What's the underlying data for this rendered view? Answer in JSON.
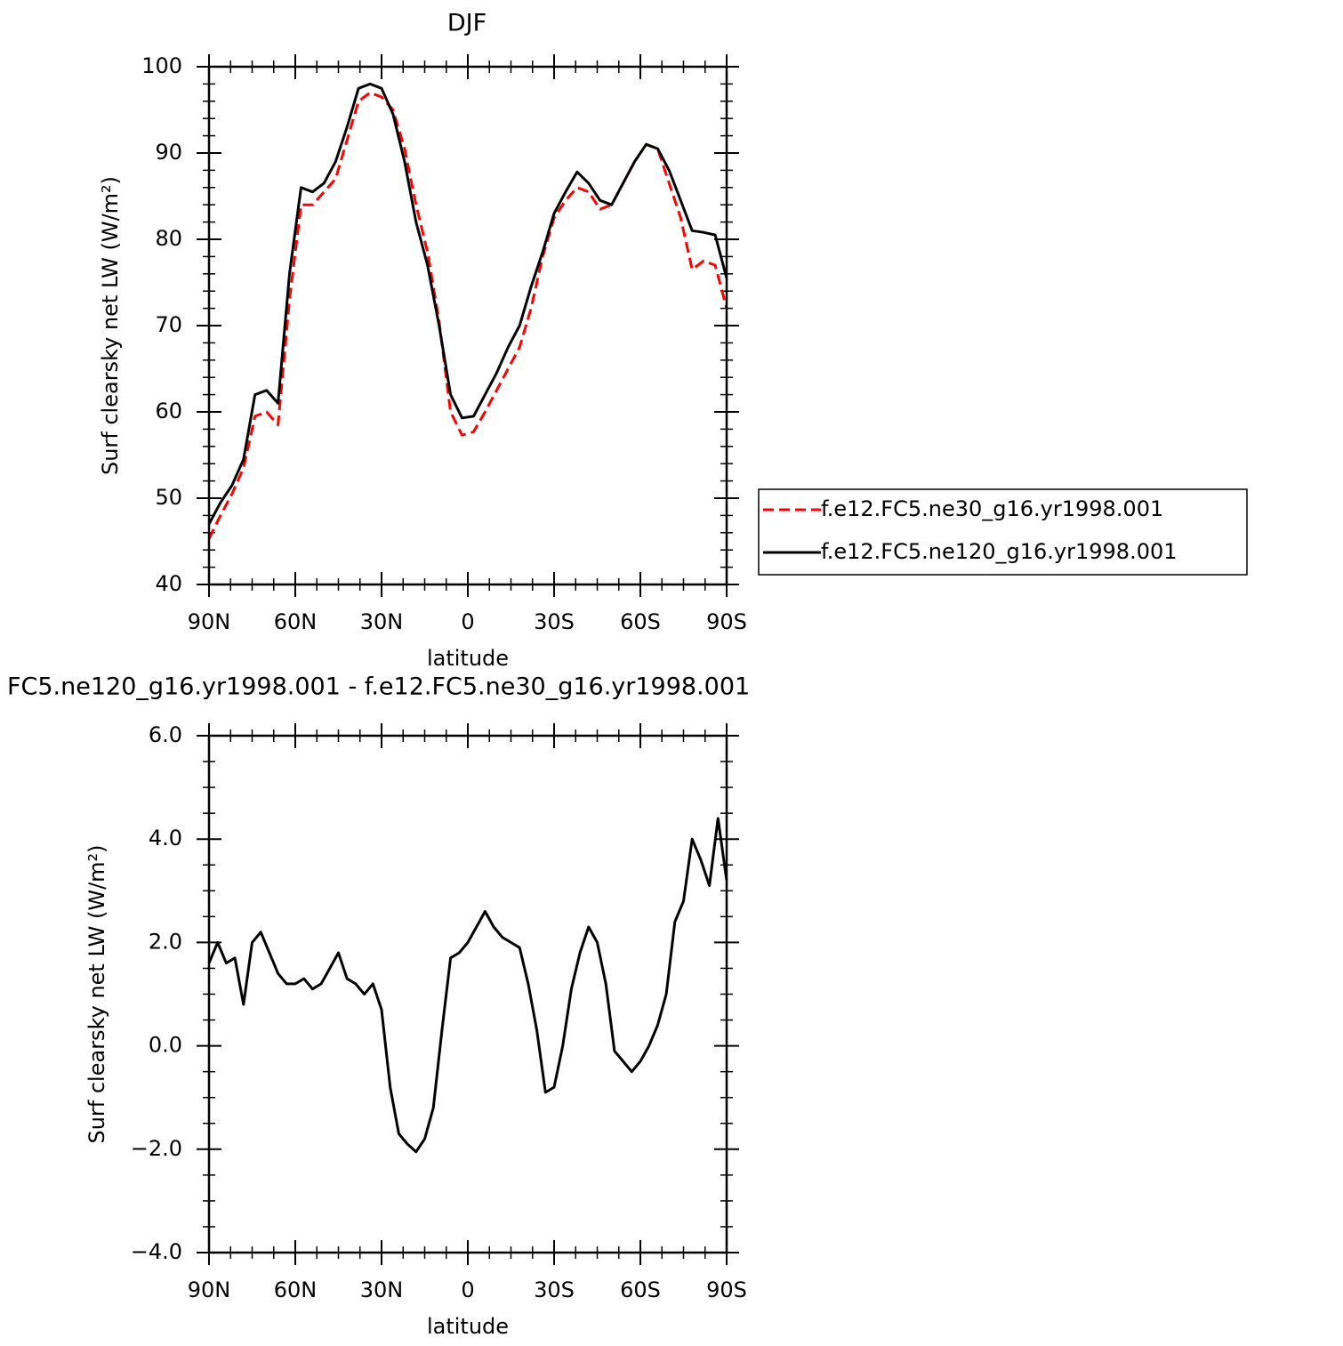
{
  "chart_data": [
    {
      "type": "line",
      "title": "DJF",
      "xlabel": "latitude",
      "ylabel": "Surf clearsky net LW (W/m²)",
      "x": [
        90,
        86,
        82,
        78,
        74,
        70,
        66,
        62,
        58,
        54,
        50,
        46,
        42,
        38,
        34,
        30,
        26,
        22,
        18,
        14,
        10,
        6,
        2,
        -2,
        -6,
        -10,
        -14,
        -18,
        -22,
        -26,
        -30,
        -34,
        -38,
        -42,
        -46,
        -50,
        -54,
        -58,
        -62,
        -66,
        -70,
        -74,
        -78,
        -82,
        -86,
        -90
      ],
      "series": [
        {
          "name": "f.e12.FC5.ne30_g16.yr1998.001",
          "color": "#ff0000",
          "dashed": true,
          "values": [
            45.3,
            48,
            50.5,
            53.5,
            59.5,
            60,
            58.5,
            73,
            84,
            84,
            85.5,
            87,
            91.5,
            96,
            97,
            96.5,
            95,
            90.5,
            84,
            78.5,
            70.5,
            60,
            57.3,
            57.7,
            60,
            62.5,
            65,
            67.5,
            72,
            78,
            82.5,
            84.5,
            86,
            85.5,
            83.5,
            84,
            86.5,
            89,
            91,
            90.5,
            86.5,
            82.5,
            76.5,
            77.5,
            77,
            72
          ]
        },
        {
          "name": "f.e12.FC5.ne120_g16.yr1998.001",
          "color": "#000000",
          "dashed": false,
          "values": [
            47,
            49.5,
            51.5,
            54.5,
            62,
            62.5,
            61,
            76,
            86,
            85.5,
            86.5,
            89,
            93,
            97.5,
            98,
            97.5,
            94.5,
            89,
            82,
            77,
            70,
            62,
            59.3,
            59.5,
            62,
            64.5,
            67.5,
            70,
            74.5,
            78.5,
            83,
            85.5,
            87.8,
            86.5,
            84.5,
            84,
            86.5,
            89,
            91,
            90.5,
            88,
            84.5,
            81,
            80.8,
            80.5,
            75.5
          ]
        }
      ],
      "xlim": [
        90,
        -90
      ],
      "xticks": [
        {
          "value": 90,
          "label": "90N"
        },
        {
          "value": 60,
          "label": "60N"
        },
        {
          "value": 30,
          "label": "30N"
        },
        0,
        {
          "value": -30,
          "label": "30S"
        },
        {
          "value": -60,
          "label": "60S"
        },
        {
          "value": -90,
          "label": "90S"
        }
      ],
      "ylim": [
        40,
        100
      ],
      "yticks": [
        40,
        50,
        60,
        70,
        80,
        90,
        100
      ],
      "legend": "right"
    },
    {
      "type": "line",
      "title": "FC5.ne120_g16.yr1998.001 - f.e12.FC5.ne30_g16.yr1998.001",
      "xlabel": "latitude",
      "ylabel": "Surf clearsky net LW (W/m²)",
      "x": [
        90,
        87,
        84,
        81,
        78,
        75,
        72,
        69,
        66,
        63,
        60,
        57,
        54,
        51,
        48,
        45,
        42,
        39,
        36,
        33,
        30,
        27,
        24,
        21,
        18,
        15,
        12,
        9,
        6,
        3,
        0,
        -3,
        -6,
        -9,
        -12,
        -15,
        -18,
        -21,
        -24,
        -27,
        -30,
        -33,
        -36,
        -39,
        -42,
        -45,
        -48,
        -51,
        -54,
        -57,
        -60,
        -63,
        -66,
        -69,
        -72,
        -75,
        -78,
        -81,
        -84,
        -87,
        -90
      ],
      "series": [
        {
          "color": "#000000",
          "dashed": false,
          "values": [
            1.6,
            2.0,
            1.6,
            1.7,
            0.8,
            2.0,
            2.2,
            1.8,
            1.4,
            1.2,
            1.2,
            1.3,
            1.1,
            1.2,
            1.5,
            1.8,
            1.3,
            1.2,
            1.0,
            1.2,
            0.7,
            -0.8,
            -1.7,
            -1.9,
            -2.05,
            -1.8,
            -1.2,
            0.3,
            1.7,
            1.8,
            2.0,
            2.3,
            2.6,
            2.3,
            2.1,
            2.0,
            1.9,
            1.2,
            0.3,
            -0.9,
            -0.8,
            0.0,
            1.1,
            1.8,
            2.3,
            2.0,
            1.2,
            -0.1,
            -0.3,
            -0.5,
            -0.3,
            0.0,
            0.4,
            1.0,
            2.4,
            2.8,
            4.0,
            3.6,
            3.1,
            4.4,
            3.2
          ]
        }
      ],
      "xlim": [
        90,
        -90
      ],
      "xticks": [
        {
          "value": 90,
          "label": "90N"
        },
        {
          "value": 60,
          "label": "60N"
        },
        {
          "value": 30,
          "label": "30N"
        },
        0,
        {
          "value": -30,
          "label": "30S"
        },
        {
          "value": -60,
          "label": "60S"
        },
        {
          "value": -90,
          "label": "90S"
        }
      ],
      "ylim": [
        -4,
        6
      ],
      "yticks": [
        {
          "value": -4,
          "label": "−4.0"
        },
        {
          "value": -2,
          "label": "−2.0"
        },
        {
          "value": 0,
          "label": "0.0"
        },
        {
          "value": 2,
          "label": "2.0"
        },
        {
          "value": 4,
          "label": "4.0"
        },
        {
          "value": 6,
          "label": "6.0"
        }
      ]
    }
  ]
}
